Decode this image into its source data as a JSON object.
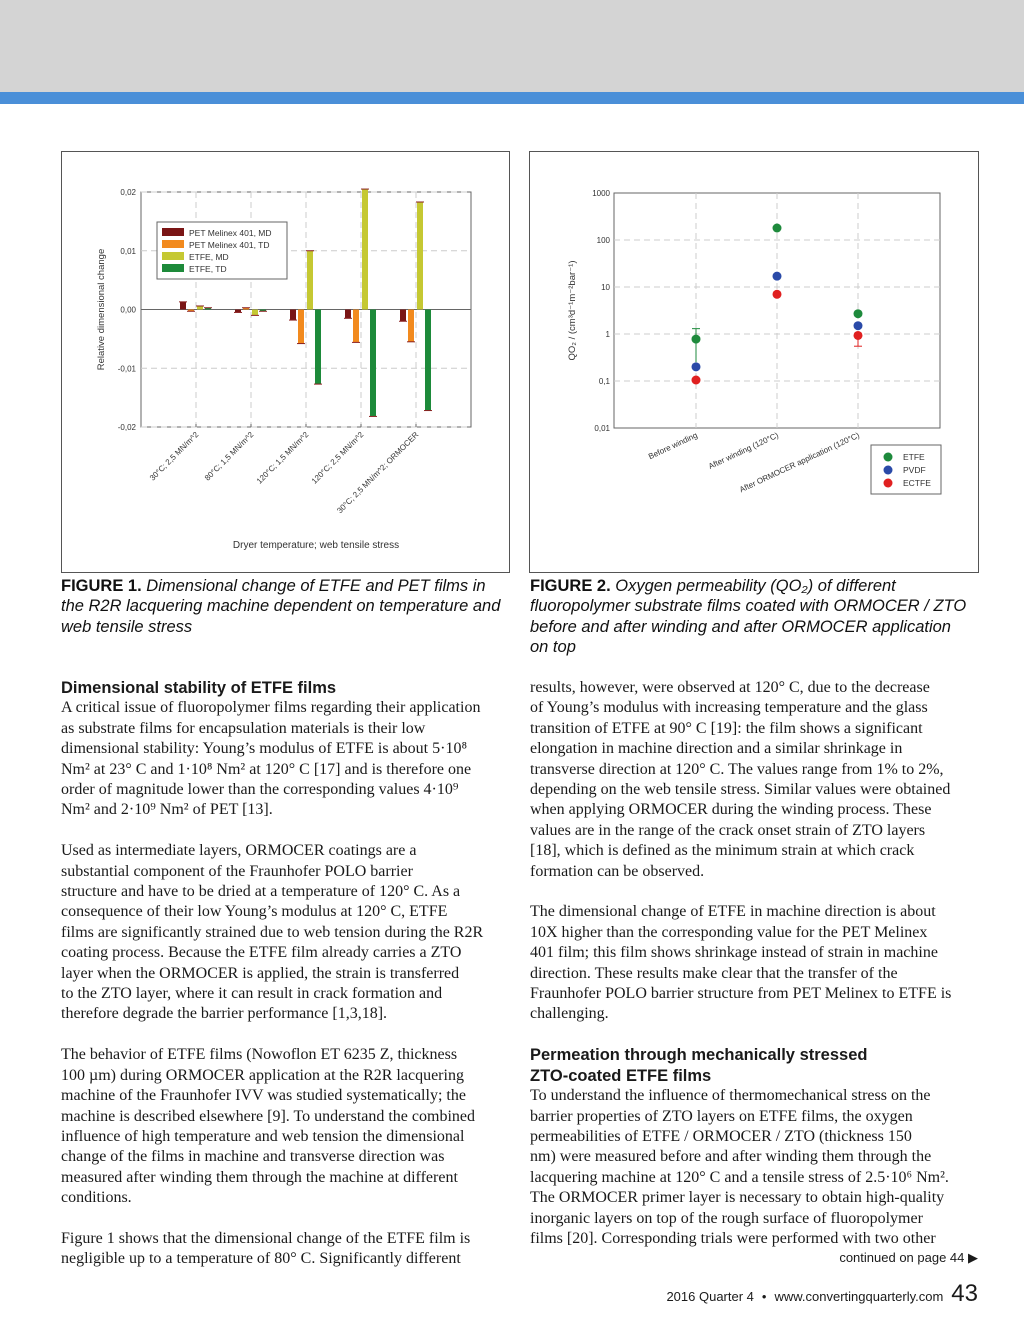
{
  "figure1": {
    "caption_label": "FIGURE 1.",
    "caption_text": "Dimensional change of ETFE and PET films in the R2R lacquering machine dependent on temperature and web tensile stress",
    "chart_data": {
      "type": "bar",
      "xlabel": "Dryer temperature; web tensile stress",
      "ylabel": "Relative dimensional change",
      "ylim": [
        -0.02,
        0.02
      ],
      "yticks": [
        "-0,02",
        "-0,01",
        "0,00",
        "0,01",
        "0,02"
      ],
      "ytick_values": [
        -0.02,
        -0.01,
        0,
        0.01,
        0.02
      ],
      "grid": true,
      "legend_position": "top-left",
      "categories": [
        "30°C; 2,5 MN/m^2",
        "80°C; 1,5 MN/m^2",
        "120°C; 1,5 MN/m^2",
        "120°C; 2,5 MN/m^2",
        "30°C; 2,5 MN/m^2; ORMOCER"
      ],
      "series": [
        {
          "name": "PET Melinex 401, MD",
          "color": "#7a1515",
          "values": [
            0.0013,
            -0.0005,
            -0.0018,
            -0.0015,
            -0.002
          ]
        },
        {
          "name": "PET Melinex 401, TD",
          "color": "#f28a1e",
          "values": [
            -0.0003,
            0.0003,
            -0.0058,
            -0.0056,
            -0.0055
          ]
        },
        {
          "name": "ETFE, MD",
          "color": "#c5c832",
          "values": [
            0.0006,
            -0.001,
            0.01,
            0.0205,
            0.0183
          ]
        },
        {
          "name": "ETFE, TD",
          "color": "#1d8a3a",
          "values": [
            0.0003,
            -0.0003,
            -0.0127,
            -0.0182,
            -0.0172
          ]
        }
      ]
    }
  },
  "figure2": {
    "caption_label": "FIGURE 2.",
    "caption_text_lines": [
      "Oxygen permeability (QO₂) of different",
      "fluoropolymer substrate films coated with ORMOCER / ZTO",
      "before and after winding and after ORMOCER application",
      "on top"
    ],
    "chart_data": {
      "type": "scatter",
      "ylabel": "QO₂ / (cm³d⁻¹m⁻²bar⁻¹)",
      "yscale": "log",
      "ylim": [
        0.01,
        1000
      ],
      "yticks": [
        "0,01",
        "0,1",
        "1",
        "10",
        "100",
        "1000"
      ],
      "ytick_values": [
        0.01,
        0.1,
        1,
        10,
        100,
        1000
      ],
      "grid": true,
      "legend_position": "bottom-right (outside)",
      "categories": [
        "Before winding",
        "After winding (120°C)",
        "After ORMOCER application (120°C)"
      ],
      "series": [
        {
          "name": "ETFE",
          "color": "#1e8a3c",
          "values": [
            0.78,
            180,
            2.7
          ]
        },
        {
          "name": "PVDF",
          "color": "#2a4aa8",
          "values": [
            0.2,
            17,
            1.5
          ]
        },
        {
          "name": "ECTFE",
          "color": "#e02020",
          "values": [
            0.105,
            7,
            0.93
          ]
        }
      ]
    }
  },
  "left_column": [
    {
      "heading": [
        "Dimensional stability of ETFE films"
      ],
      "lines": [
        "A critical issue of fluoropolymer films regarding their application",
        "as substrate films for encapsulation materials is their low",
        "dimensional stability: Young’s modulus of ETFE is about 5·10⁸",
        "Nm² at 23° C and 1·10⁸ Nm² at 120° C [17] and is therefore one",
        "order of magnitude lower than the corresponding values 4·10⁹",
        "Nm² and 2·10⁹ Nm² of PET [13]."
      ]
    },
    {
      "lines": [
        "Used as intermediate layers, ORMOCER coatings are a",
        "substantial component of the Fraunhofer POLO barrier",
        "structure and have to be dried at a temperature of 120° C. As a",
        "consequence of their low Young’s modulus at 120° C, ETFE",
        "films are significantly strained due to web tension during the R2R",
        "coating process. Because the ETFE film already carries a ZTO",
        "layer when the ORMOCER is applied, the strain is transferred",
        "to the ZTO layer, where it can result in crack formation and",
        "therefore degrade the barrier performance [1,3,18]."
      ]
    },
    {
      "lines": [
        "The behavior of ETFE films (Nowoflon ET 6235 Z, thickness",
        "100 µm) during ORMOCER application at the R2R lacquering",
        "machine of the Fraunhofer IVV was studied systematically; the",
        "machine is described elsewhere [9]. To understand the combined",
        "influence of high temperature and web tension the dimensional",
        "change of the films in machine and transverse direction was",
        "measured after winding them through the machine at different",
        "conditions."
      ]
    },
    {
      "lines": [
        "Figure 1 shows that the dimensional change of the ETFE film is",
        "negligible up to a temperature of 80° C. Significantly different"
      ]
    }
  ],
  "right_column": [
    {
      "lines": [
        "results, however, were observed at 120° C, due to the decrease",
        "of Young’s modulus with increasing temperature and the glass",
        "transition of ETFE at 90° C [19]: the film shows a significant",
        "elongation in machine direction and a similar shrinkage in",
        "transverse direction at 120° C. The values range from 1% to 2%,",
        "depending on the web tensile stress. Similar values were obtained",
        "when applying ORMOCER during the winding process. These",
        "values are in the range of the crack onset strain of ZTO layers",
        "[18], which is defined as the minimum strain at which crack",
        "formation can be observed."
      ]
    },
    {
      "lines": [
        "The dimensional change of ETFE in machine direction is about",
        "10X higher than the corresponding value for the PET Melinex",
        "401 film; this film shows shrinkage instead of strain in machine",
        "direction. These results make clear that the transfer of the",
        "Fraunhofer POLO barrier structure from PET Melinex to ETFE is",
        "challenging."
      ]
    },
    {
      "heading": [
        "Permeation through mechanically stressed",
        "ZTO-coated ETFE films"
      ],
      "lines": [
        "To understand the influence of thermomechanical stress on the",
        "barrier properties of ZTO layers on ETFE films, the oxygen",
        "permeabilities of ETFE / ORMOCER / ZTO (thickness 150",
        "nm) were measured before and after winding them through the",
        "lacquering machine at 120° C and a tensile stress of 2.5·10⁶ Nm².",
        "The ORMOCER primer layer is necessary to obtain high-quality",
        "inorganic layers on top of the rough surface of fluoropolymer",
        "films [20]. Corresponding trials were performed with two other"
      ]
    }
  ],
  "continued": "continued on page 44 ▶",
  "footer": {
    "issue": "2016 Quarter 4",
    "bullet": "•",
    "url": "www.convertingquarterly.com",
    "page_number": "43"
  }
}
